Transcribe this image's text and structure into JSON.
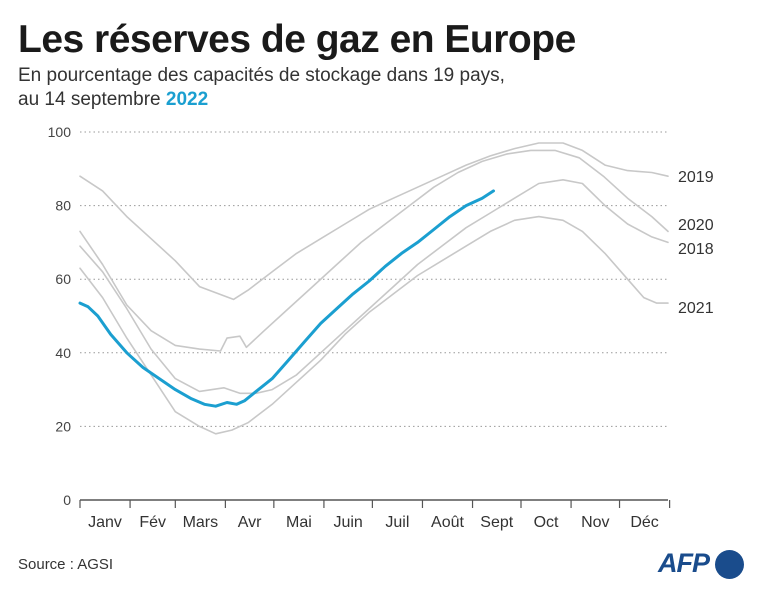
{
  "header": {
    "title": "Les réserves de gaz en Europe",
    "subtitle_line1": "En pourcentage des capacités de stockage dans 19 pays,",
    "subtitle_line2_prefix": "au 14 septembre ",
    "subtitle_highlight": "2022"
  },
  "footer": {
    "source": "Source : AGSI",
    "logo": "AFP"
  },
  "colors": {
    "highlight": "#1b9fd0",
    "past_years": "#c8c8c8",
    "grid": "#999999",
    "axis": "#555555"
  },
  "chart_data": {
    "type": "line",
    "title": "Les réserves de gaz en Europe",
    "x_unit": "day of year",
    "xlim": [
      1,
      365
    ],
    "ylim": [
      0,
      100
    ],
    "yticks": [
      0,
      20,
      40,
      60,
      80,
      100
    ],
    "grid": "horizontal dotted",
    "months": [
      "Janv",
      "Fév",
      "Mars",
      "Avr",
      "Mai",
      "Juin",
      "Juil",
      "Août",
      "Sept",
      "Oct",
      "Nov",
      "Déc"
    ],
    "series": [
      {
        "name": "2019",
        "points": [
          [
            1,
            88
          ],
          [
            15,
            84
          ],
          [
            30,
            77
          ],
          [
            45,
            71
          ],
          [
            60,
            65
          ],
          [
            75,
            58
          ],
          [
            90,
            55.5
          ],
          [
            96,
            54.5
          ],
          [
            105,
            57
          ],
          [
            120,
            62
          ],
          [
            135,
            67
          ],
          [
            150,
            71
          ],
          [
            165,
            75
          ],
          [
            180,
            79
          ],
          [
            195,
            82
          ],
          [
            210,
            85
          ],
          [
            225,
            88
          ],
          [
            240,
            91
          ],
          [
            255,
            93.5
          ],
          [
            270,
            95.5
          ],
          [
            285,
            97
          ],
          [
            300,
            97
          ],
          [
            312,
            95
          ],
          [
            326,
            91
          ],
          [
            340,
            89.5
          ],
          [
            355,
            89
          ],
          [
            365,
            88
          ]
        ]
      },
      {
        "name": "2020",
        "points": [
          [
            1,
            73
          ],
          [
            15,
            64
          ],
          [
            30,
            53
          ],
          [
            45,
            46
          ],
          [
            60,
            42
          ],
          [
            75,
            41
          ],
          [
            88,
            40.5
          ],
          [
            92,
            44
          ],
          [
            100,
            44.5
          ],
          [
            104,
            41.5
          ],
          [
            115,
            46
          ],
          [
            130,
            52
          ],
          [
            145,
            58
          ],
          [
            160,
            64
          ],
          [
            175,
            70
          ],
          [
            190,
            75
          ],
          [
            205,
            80
          ],
          [
            220,
            85
          ],
          [
            235,
            89
          ],
          [
            250,
            92
          ],
          [
            265,
            94
          ],
          [
            280,
            95
          ],
          [
            295,
            95
          ],
          [
            310,
            93
          ],
          [
            325,
            88
          ],
          [
            340,
            82
          ],
          [
            355,
            77
          ],
          [
            365,
            73
          ]
        ]
      },
      {
        "name": "2018",
        "points": [
          [
            1,
            69
          ],
          [
            15,
            62
          ],
          [
            30,
            52
          ],
          [
            45,
            41
          ],
          [
            60,
            33
          ],
          [
            75,
            29.5
          ],
          [
            90,
            30.5
          ],
          [
            100,
            29
          ],
          [
            110,
            29
          ],
          [
            120,
            30
          ],
          [
            135,
            34
          ],
          [
            150,
            40
          ],
          [
            165,
            46
          ],
          [
            180,
            52
          ],
          [
            195,
            58
          ],
          [
            210,
            64
          ],
          [
            225,
            69
          ],
          [
            240,
            74
          ],
          [
            255,
            78
          ],
          [
            270,
            82
          ],
          [
            285,
            86
          ],
          [
            300,
            87
          ],
          [
            312,
            86
          ],
          [
            326,
            80
          ],
          [
            340,
            75
          ],
          [
            355,
            71.5
          ],
          [
            365,
            70
          ]
        ]
      },
      {
        "name": "2021",
        "points": [
          [
            1,
            63
          ],
          [
            15,
            55
          ],
          [
            30,
            44
          ],
          [
            45,
            34
          ],
          [
            60,
            24
          ],
          [
            75,
            20
          ],
          [
            85,
            18
          ],
          [
            95,
            19
          ],
          [
            105,
            21
          ],
          [
            120,
            26
          ],
          [
            135,
            32
          ],
          [
            150,
            38
          ],
          [
            165,
            45
          ],
          [
            180,
            51
          ],
          [
            195,
            56
          ],
          [
            210,
            61
          ],
          [
            225,
            65
          ],
          [
            240,
            69
          ],
          [
            255,
            73
          ],
          [
            270,
            76
          ],
          [
            285,
            77
          ],
          [
            300,
            76
          ],
          [
            312,
            73
          ],
          [
            326,
            67
          ],
          [
            340,
            60
          ],
          [
            350,
            55
          ],
          [
            358,
            53.5
          ],
          [
            365,
            53.5
          ]
        ]
      },
      {
        "name": "2022",
        "highlight": true,
        "points": [
          [
            1,
            53.5
          ],
          [
            6,
            52.5
          ],
          [
            12,
            50
          ],
          [
            20,
            45
          ],
          [
            30,
            40
          ],
          [
            40,
            36
          ],
          [
            50,
            33
          ],
          [
            60,
            30
          ],
          [
            70,
            27.5
          ],
          [
            78,
            26
          ],
          [
            85,
            25.5
          ],
          [
            92,
            26.5
          ],
          [
            98,
            26
          ],
          [
            103,
            27
          ],
          [
            110,
            29.5
          ],
          [
            120,
            33
          ],
          [
            130,
            38
          ],
          [
            140,
            43
          ],
          [
            150,
            48
          ],
          [
            160,
            52
          ],
          [
            170,
            56
          ],
          [
            180,
            59.5
          ],
          [
            190,
            63.5
          ],
          [
            200,
            67
          ],
          [
            210,
            70
          ],
          [
            220,
            73.5
          ],
          [
            230,
            77
          ],
          [
            240,
            80
          ],
          [
            250,
            82
          ],
          [
            257,
            84
          ]
        ]
      }
    ]
  }
}
